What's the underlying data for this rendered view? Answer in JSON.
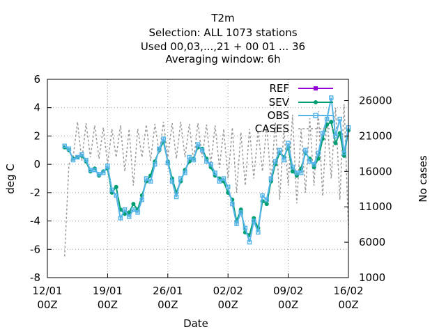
{
  "chart_data": {
    "type": "line",
    "title_lines": [
      "T2m",
      "Selection: ALL   1073 stations",
      "Used  00,03,...,21  + 00 01 ... 36",
      "Averaging window:  6h"
    ],
    "xlabel": "Date",
    "ylabel": "deg C",
    "y2label": "No cases",
    "xlim_days": [
      0,
      35
    ],
    "ylim": [
      -8,
      6
    ],
    "y2lim": [
      1000,
      29000
    ],
    "x_ticks": [
      {
        "day": 0,
        "line1": "12/01",
        "line2": "00Z"
      },
      {
        "day": 7,
        "line1": "19/01",
        "line2": "00Z"
      },
      {
        "day": 14,
        "line1": "26/01",
        "line2": "00Z"
      },
      {
        "day": 21,
        "line1": "02/02",
        "line2": "00Z"
      },
      {
        "day": 28,
        "line1": "09/02",
        "line2": "00Z"
      },
      {
        "day": 35,
        "line1": "16/02",
        "line2": "00Z"
      }
    ],
    "y_ticks": [
      "-8",
      "-6",
      "-4",
      "-2",
      "0",
      "2",
      "4",
      "6"
    ],
    "y2_ticks": [
      "1000",
      "6000",
      "11000",
      "16000",
      "21000",
      "26000"
    ],
    "grid": true,
    "legend_position": "top-right",
    "series": [
      {
        "name": "REF",
        "color": "#9400d3",
        "marker": "plus-square",
        "style": "solid"
      },
      {
        "name": "SEV",
        "color": "#009e73",
        "marker": "star",
        "style": "solid",
        "points": [
          [
            2,
            1.2
          ],
          [
            2.5,
            1.0
          ],
          [
            3,
            0.4
          ],
          [
            3.5,
            0.5
          ],
          [
            4,
            0.6
          ],
          [
            4.5,
            0.2
          ],
          [
            5,
            -0.5
          ],
          [
            5.5,
            -0.3
          ],
          [
            6,
            -0.8
          ],
          [
            6.5,
            -0.5
          ],
          [
            7,
            -0.3
          ],
          [
            7.5,
            -2.0
          ],
          [
            8,
            -1.6
          ],
          [
            8.5,
            -3.2
          ],
          [
            9,
            -3.5
          ],
          [
            9.5,
            -3.4
          ],
          [
            10,
            -2.8
          ],
          [
            10.5,
            -3.2
          ],
          [
            11,
            -2.2
          ],
          [
            11.5,
            -1.2
          ],
          [
            12,
            -0.8
          ],
          [
            12.5,
            0.2
          ],
          [
            13,
            1.0
          ],
          [
            13.5,
            1.6
          ],
          [
            14,
            0.2
          ],
          [
            14.5,
            -1.0
          ],
          [
            15,
            -2.0
          ],
          [
            15.5,
            -1.2
          ],
          [
            16,
            -0.4
          ],
          [
            16.5,
            0.2
          ],
          [
            17,
            0.4
          ],
          [
            17.5,
            1.2
          ],
          [
            18,
            1.1
          ],
          [
            18.5,
            0.4
          ],
          [
            19,
            -0.2
          ],
          [
            19.5,
            -0.8
          ],
          [
            20,
            -1.0
          ],
          [
            20.5,
            -1.2
          ],
          [
            21,
            -2.0
          ],
          [
            21.5,
            -2.5
          ],
          [
            22,
            -4.0
          ],
          [
            22.5,
            -3.2
          ],
          [
            23,
            -4.8
          ],
          [
            23.5,
            -5.0
          ],
          [
            24,
            -3.8
          ],
          [
            24.5,
            -4.5
          ],
          [
            25,
            -2.6
          ],
          [
            25.5,
            -2.8
          ],
          [
            26,
            -1.2
          ],
          [
            26.5,
            0.0
          ],
          [
            27,
            0.8
          ],
          [
            27.5,
            0.5
          ],
          [
            28,
            1.2
          ],
          [
            28.5,
            -0.5
          ],
          [
            29,
            -0.8
          ],
          [
            29.5,
            -0.3
          ],
          [
            30,
            0.8
          ],
          [
            30.5,
            0.4
          ],
          [
            31,
            -0.2
          ],
          [
            31.5,
            0.4
          ],
          [
            32,
            1.8
          ],
          [
            32.5,
            2.8
          ],
          [
            33,
            3.0
          ],
          [
            33.5,
            1.5
          ],
          [
            34,
            2.2
          ],
          [
            34.5,
            0.6
          ],
          [
            35,
            2.4
          ]
        ]
      },
      {
        "name": "OBS",
        "color": "#56b4e9",
        "marker": "square",
        "style": "solid",
        "points": [
          [
            2,
            1.3
          ],
          [
            2.5,
            1.1
          ],
          [
            3,
            0.3
          ],
          [
            3.5,
            0.5
          ],
          [
            4,
            0.7
          ],
          [
            4.5,
            0.3
          ],
          [
            5,
            -0.4
          ],
          [
            5.5,
            -0.4
          ],
          [
            6,
            -0.7
          ],
          [
            6.5,
            -0.6
          ],
          [
            7,
            -0.1
          ],
          [
            7.5,
            -1.8
          ],
          [
            8,
            -2.2
          ],
          [
            8.5,
            -3.8
          ],
          [
            9,
            -3.2
          ],
          [
            9.5,
            -3.7
          ],
          [
            10,
            -3.2
          ],
          [
            10.5,
            -3.4
          ],
          [
            11,
            -2.5
          ],
          [
            11.5,
            -1.0
          ],
          [
            12,
            -1.2
          ],
          [
            12.5,
            0.0
          ],
          [
            13,
            1.1
          ],
          [
            13.5,
            1.8
          ],
          [
            14,
            0.1
          ],
          [
            14.5,
            -1.2
          ],
          [
            15,
            -2.3
          ],
          [
            15.5,
            -1.0
          ],
          [
            16,
            -0.6
          ],
          [
            16.5,
            0.5
          ],
          [
            17,
            0.3
          ],
          [
            17.5,
            1.4
          ],
          [
            18,
            1.0
          ],
          [
            18.5,
            0.2
          ],
          [
            19,
            0.0
          ],
          [
            19.5,
            -0.6
          ],
          [
            20,
            -1.2
          ],
          [
            20.5,
            -1.0
          ],
          [
            21,
            -1.6
          ],
          [
            21.5,
            -2.8
          ],
          [
            22,
            -4.2
          ],
          [
            22.5,
            -3.4
          ],
          [
            23,
            -4.5
          ],
          [
            23.5,
            -5.5
          ],
          [
            24,
            -4.0
          ],
          [
            24.5,
            -4.8
          ],
          [
            25,
            -2.2
          ],
          [
            25.5,
            -2.5
          ],
          [
            26,
            -1.0
          ],
          [
            26.5,
            0.2
          ],
          [
            27,
            1.0
          ],
          [
            27.5,
            0.3
          ],
          [
            28,
            1.5
          ],
          [
            28.5,
            -0.2
          ],
          [
            29,
            -0.6
          ],
          [
            29.5,
            -0.6
          ],
          [
            30,
            1.0
          ],
          [
            30.5,
            0.2
          ],
          [
            31,
            0.0
          ],
          [
            31.5,
            0.8
          ],
          [
            32,
            2.2
          ],
          [
            32.5,
            3.2
          ],
          [
            33,
            4.7
          ],
          [
            33.5,
            2.0
          ],
          [
            34,
            3.2
          ],
          [
            34.5,
            0.8
          ],
          [
            35,
            2.6
          ]
        ]
      },
      {
        "name": "CASES",
        "color": "#999999",
        "marker": "none",
        "style": "dashed",
        "axis": "y2",
        "points": [
          [
            2,
            4000
          ],
          [
            2.5,
            17000
          ],
          [
            3,
            18000
          ],
          [
            3.5,
            23000
          ],
          [
            4,
            17500
          ],
          [
            4.5,
            22800
          ],
          [
            5,
            18000
          ],
          [
            5.5,
            22500
          ],
          [
            6,
            17800
          ],
          [
            6.5,
            22200
          ],
          [
            7,
            17000
          ],
          [
            7.5,
            22000
          ],
          [
            8,
            18000
          ],
          [
            8.5,
            22500
          ],
          [
            9,
            16000
          ],
          [
            9.5,
            22000
          ],
          [
            10,
            14000
          ],
          [
            10.5,
            22000
          ],
          [
            11,
            18000
          ],
          [
            11.5,
            22600
          ],
          [
            12,
            17500
          ],
          [
            12.5,
            22700
          ],
          [
            13,
            18500
          ],
          [
            13.5,
            23000
          ],
          [
            14,
            18000
          ],
          [
            14.5,
            22800
          ],
          [
            15,
            17800
          ],
          [
            15.5,
            23000
          ],
          [
            16,
            18000
          ],
          [
            16.5,
            22700
          ],
          [
            17,
            17500
          ],
          [
            17.5,
            22800
          ],
          [
            18,
            18000
          ],
          [
            18.5,
            22600
          ],
          [
            19,
            17000
          ],
          [
            19.5,
            22500
          ],
          [
            20,
            16500
          ],
          [
            20.5,
            22000
          ],
          [
            21,
            15000
          ],
          [
            21.5,
            22200
          ],
          [
            22,
            13000
          ],
          [
            22.5,
            21500
          ],
          [
            23,
            14000
          ],
          [
            23.5,
            22000
          ],
          [
            24,
            15000
          ],
          [
            24.5,
            21800
          ],
          [
            25,
            16000
          ],
          [
            25.5,
            22500
          ],
          [
            26,
            14500
          ],
          [
            26.5,
            23000
          ],
          [
            27,
            12000
          ],
          [
            27.5,
            22000
          ],
          [
            28,
            14000
          ],
          [
            28.5,
            24000
          ],
          [
            29,
            11500
          ],
          [
            29.5,
            22000
          ],
          [
            30,
            13000
          ],
          [
            30.5,
            23500
          ],
          [
            31,
            14000
          ],
          [
            31.5,
            24500
          ],
          [
            32,
            12500
          ],
          [
            32.5,
            24000
          ],
          [
            33,
            15000
          ],
          [
            33.5,
            25000
          ],
          [
            34,
            12000
          ],
          [
            34.5,
            25500
          ],
          [
            35,
            8000
          ]
        ]
      }
    ]
  }
}
